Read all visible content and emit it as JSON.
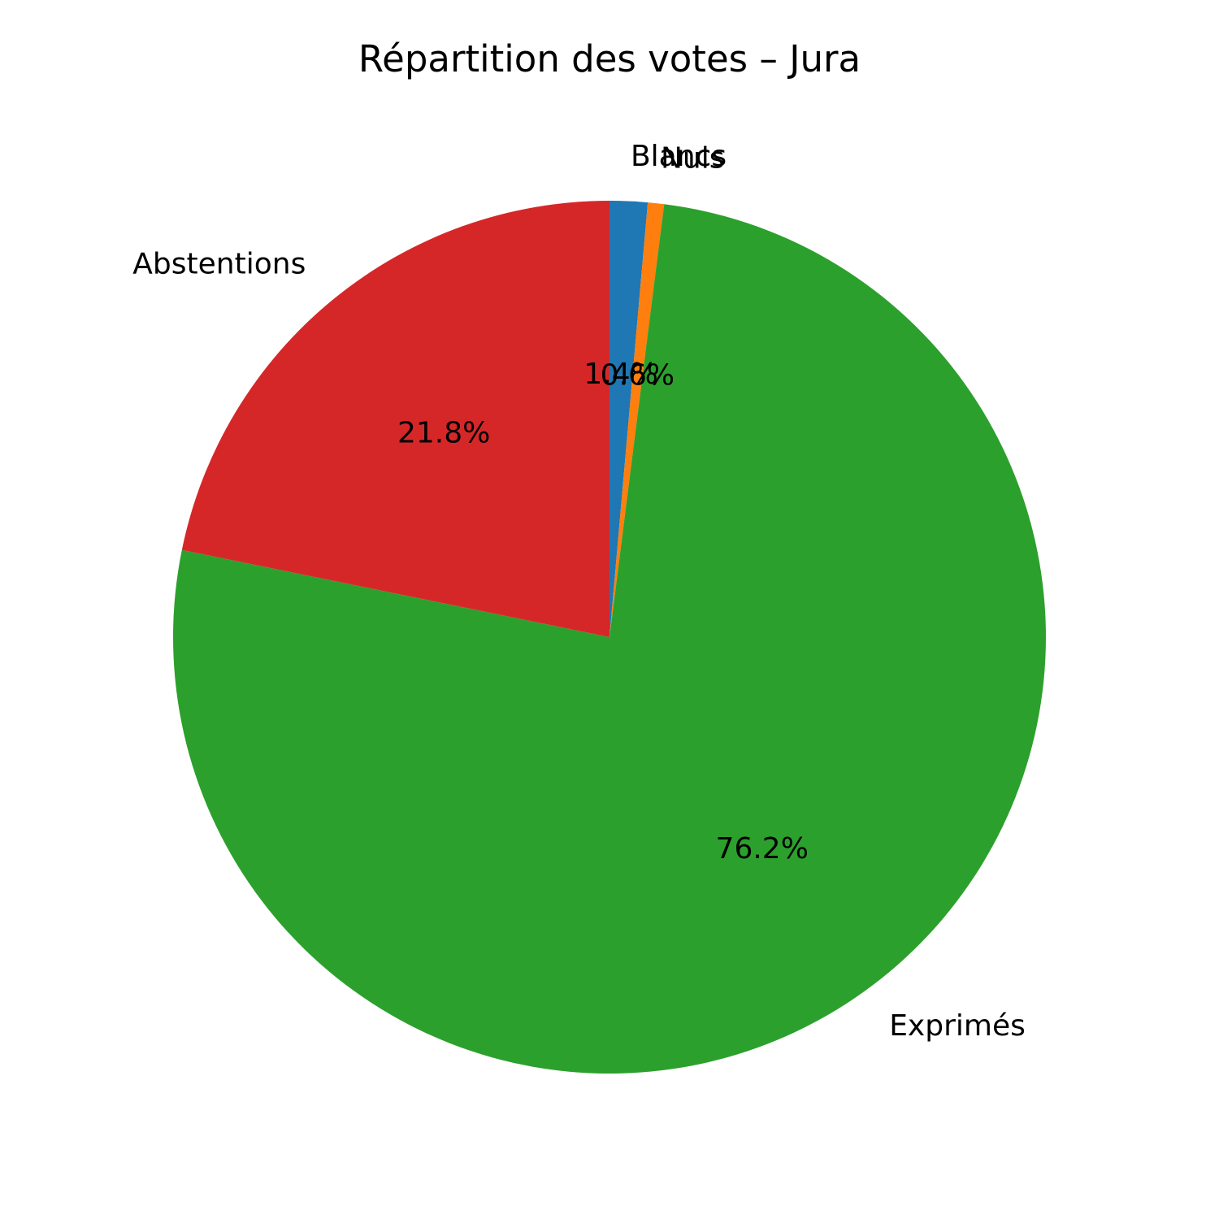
{
  "chart_data": {
    "type": "pie",
    "title": "Répartition des votes – Jura",
    "start_angle_deg": 90,
    "direction": "clockwise",
    "slices": [
      {
        "label": "Blancs",
        "value": 1.4,
        "pct_label": "1.4%",
        "color": "#1f77b4"
      },
      {
        "label": "Nuls",
        "value": 0.6,
        "pct_label": "0.6%",
        "color": "#ff7f0e"
      },
      {
        "label": "Exprimés",
        "value": 76.2,
        "pct_label": "76.2%",
        "color": "#2ca02c"
      },
      {
        "label": "Abstentions",
        "value": 21.8,
        "pct_label": "21.8%",
        "color": "#d62728"
      }
    ]
  }
}
